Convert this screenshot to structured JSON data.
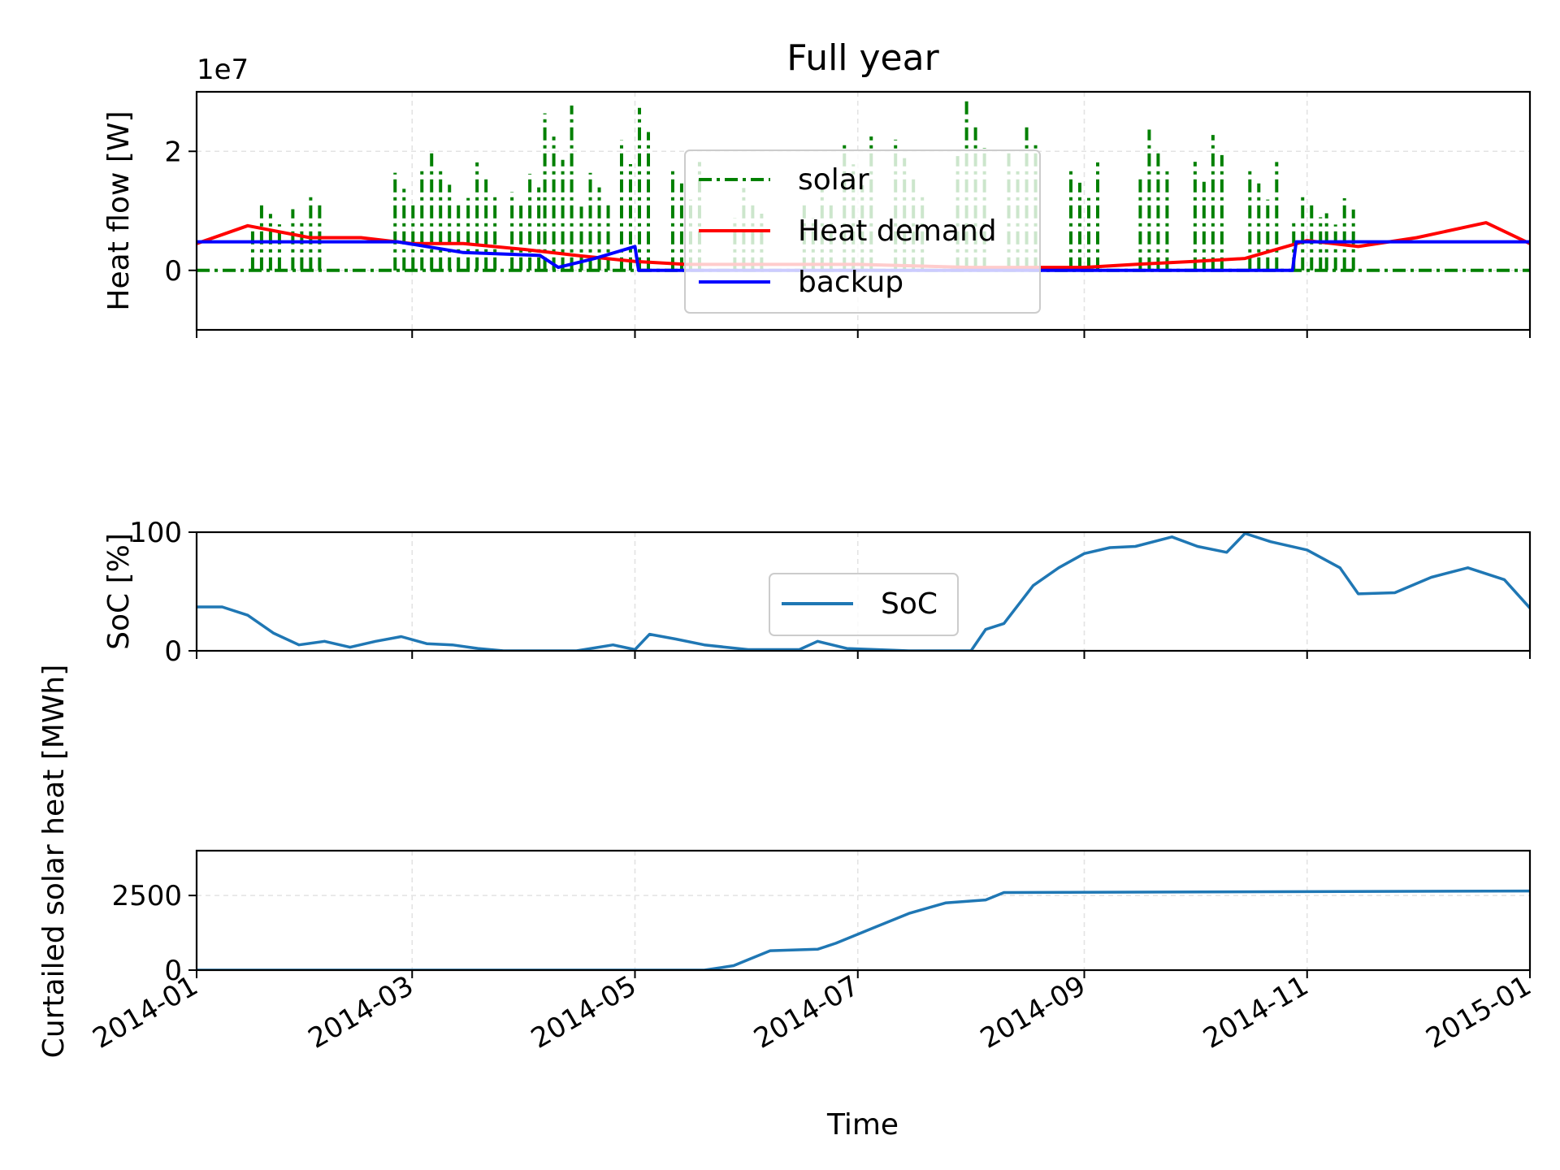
{
  "figure": {
    "title": "Full year",
    "xlabel": "Time",
    "x_ticks": [
      "2014-01",
      "2014-03",
      "2014-05",
      "2014-07",
      "2014-09",
      "2014-11",
      "2015-01"
    ]
  },
  "chart_data": [
    {
      "type": "line",
      "title": "Full year",
      "xlabel": "",
      "ylabel": "Heat flow [W]",
      "offset_label": "1e7",
      "x_range": [
        "2014-01-01",
        "2015-01-01"
      ],
      "ylim": [
        -1.0,
        3.0
      ],
      "y_units_scale": 10000000,
      "y_ticks": [
        0,
        2
      ],
      "y_tick_labels": [
        "0",
        "2"
      ],
      "grid": true,
      "legend_location": "upper center",
      "series": [
        {
          "name": "solar",
          "color": "#008000",
          "style": "dash-dot",
          "note_values": "bursts of production in units of 1e7 W; zero otherwise",
          "points": [
            [
              "2014-01-20",
              1.3
            ],
            [
              "2014-01-31",
              1.5
            ],
            [
              "2014-02-28",
              2.0
            ],
            [
              "2014-03-10",
              2.1
            ],
            [
              "2014-03-20",
              1.9
            ],
            [
              "2014-04-01",
              1.7
            ],
            [
              "2014-04-10",
              2.9
            ],
            [
              "2014-04-20",
              1.8
            ],
            [
              "2014-05-01",
              3.0
            ],
            [
              "2014-05-15",
              2.0
            ],
            [
              "2014-06-01",
              1.6
            ],
            [
              "2014-06-20",
              1.6
            ],
            [
              "2014-07-01",
              2.6
            ],
            [
              "2014-07-15",
              2.3
            ],
            [
              "2014-08-01",
              3.0
            ],
            [
              "2014-08-15",
              2.6
            ],
            [
              "2014-09-01",
              1.9
            ],
            [
              "2014-09-20",
              2.6
            ],
            [
              "2014-10-05",
              2.5
            ],
            [
              "2014-10-20",
              2.0
            ],
            [
              "2014-11-01",
              1.5
            ],
            [
              "2014-11-10",
              1.4
            ]
          ]
        },
        {
          "name": "Heat demand",
          "color": "#ff0000",
          "style": "solid",
          "points": [
            [
              "2014-01-01",
              0.45
            ],
            [
              "2014-01-15",
              0.75
            ],
            [
              "2014-02-01",
              0.55
            ],
            [
              "2014-02-15",
              0.55
            ],
            [
              "2014-03-01",
              0.45
            ],
            [
              "2014-03-15",
              0.45
            ],
            [
              "2014-04-01",
              0.35
            ],
            [
              "2014-04-15",
              0.25
            ],
            [
              "2014-05-01",
              0.15
            ],
            [
              "2014-05-15",
              0.1
            ],
            [
              "2014-06-01",
              0.1
            ],
            [
              "2014-07-01",
              0.1
            ],
            [
              "2014-08-01",
              0.05
            ],
            [
              "2014-09-01",
              0.05
            ],
            [
              "2014-09-15",
              0.1
            ],
            [
              "2014-10-01",
              0.15
            ],
            [
              "2014-10-15",
              0.2
            ],
            [
              "2014-11-01",
              0.5
            ],
            [
              "2014-11-15",
              0.4
            ],
            [
              "2014-12-01",
              0.55
            ],
            [
              "2014-12-20",
              0.8
            ],
            [
              "2015-01-01",
              0.45
            ]
          ]
        },
        {
          "name": "backup",
          "color": "#0000ff",
          "style": "solid",
          "points": [
            [
              "2014-01-01",
              0.48
            ],
            [
              "2014-02-25",
              0.48
            ],
            [
              "2014-03-15",
              0.3
            ],
            [
              "2014-04-05",
              0.25
            ],
            [
              "2014-04-10",
              0.05
            ],
            [
              "2014-04-20",
              0.2
            ],
            [
              "2014-05-01",
              0.4
            ],
            [
              "2014-05-02",
              0.0
            ],
            [
              "2014-10-28",
              0.0
            ],
            [
              "2014-10-29",
              0.48
            ],
            [
              "2015-01-01",
              0.48
            ]
          ]
        }
      ]
    },
    {
      "type": "line",
      "ylabel": "SoC [%]",
      "x_range": [
        "2014-01-01",
        "2015-01-01"
      ],
      "ylim": [
        0,
        100
      ],
      "y_ticks": [
        0,
        100
      ],
      "grid": true,
      "legend_location": "center",
      "series": [
        {
          "name": "SoC",
          "color": "#1f77b4",
          "points": [
            [
              "2014-01-01",
              37
            ],
            [
              "2014-01-08",
              37
            ],
            [
              "2014-01-15",
              30
            ],
            [
              "2014-01-22",
              15
            ],
            [
              "2014-01-29",
              5
            ],
            [
              "2014-02-05",
              8
            ],
            [
              "2014-02-12",
              3
            ],
            [
              "2014-02-19",
              8
            ],
            [
              "2014-02-26",
              12
            ],
            [
              "2014-03-05",
              6
            ],
            [
              "2014-03-12",
              5
            ],
            [
              "2014-03-19",
              2
            ],
            [
              "2014-03-26",
              0
            ],
            [
              "2014-04-15",
              0
            ],
            [
              "2014-04-25",
              5
            ],
            [
              "2014-05-01",
              1
            ],
            [
              "2014-05-05",
              14
            ],
            [
              "2014-05-12",
              10
            ],
            [
              "2014-05-20",
              5
            ],
            [
              "2014-06-01",
              1
            ],
            [
              "2014-06-15",
              1
            ],
            [
              "2014-06-20",
              8
            ],
            [
              "2014-06-28",
              2
            ],
            [
              "2014-07-15",
              0
            ],
            [
              "2014-08-01",
              0
            ],
            [
              "2014-08-05",
              18
            ],
            [
              "2014-08-10",
              23
            ],
            [
              "2014-08-18",
              55
            ],
            [
              "2014-08-25",
              70
            ],
            [
              "2014-09-01",
              82
            ],
            [
              "2014-09-08",
              87
            ],
            [
              "2014-09-15",
              88
            ],
            [
              "2014-09-25",
              96
            ],
            [
              "2014-10-02",
              88
            ],
            [
              "2014-10-10",
              83
            ],
            [
              "2014-10-15",
              99
            ],
            [
              "2014-10-22",
              92
            ],
            [
              "2014-11-01",
              85
            ],
            [
              "2014-11-10",
              70
            ],
            [
              "2014-11-15",
              48
            ],
            [
              "2014-11-25",
              49
            ],
            [
              "2014-12-05",
              62
            ],
            [
              "2014-12-15",
              70
            ],
            [
              "2014-12-25",
              60
            ],
            [
              "2015-01-01",
              36
            ]
          ]
        }
      ]
    },
    {
      "type": "line",
      "ylabel": "Curtailed solar heat [MWh]",
      "x_range": [
        "2014-01-01",
        "2015-01-01"
      ],
      "ylim": [
        0,
        4000
      ],
      "y_ticks": [
        0,
        2500
      ],
      "grid": true,
      "series": [
        {
          "name": "",
          "color": "#1f77b4",
          "points": [
            [
              "2014-01-01",
              0
            ],
            [
              "2014-05-20",
              0
            ],
            [
              "2014-05-28",
              150
            ],
            [
              "2014-06-01",
              350
            ],
            [
              "2014-06-07",
              650
            ],
            [
              "2014-06-20",
              700
            ],
            [
              "2014-06-25",
              900
            ],
            [
              "2014-07-05",
              1400
            ],
            [
              "2014-07-15",
              1900
            ],
            [
              "2014-07-25",
              2250
            ],
            [
              "2014-08-05",
              2350
            ],
            [
              "2014-08-10",
              2600
            ],
            [
              "2015-01-01",
              2650
            ]
          ]
        }
      ]
    }
  ]
}
